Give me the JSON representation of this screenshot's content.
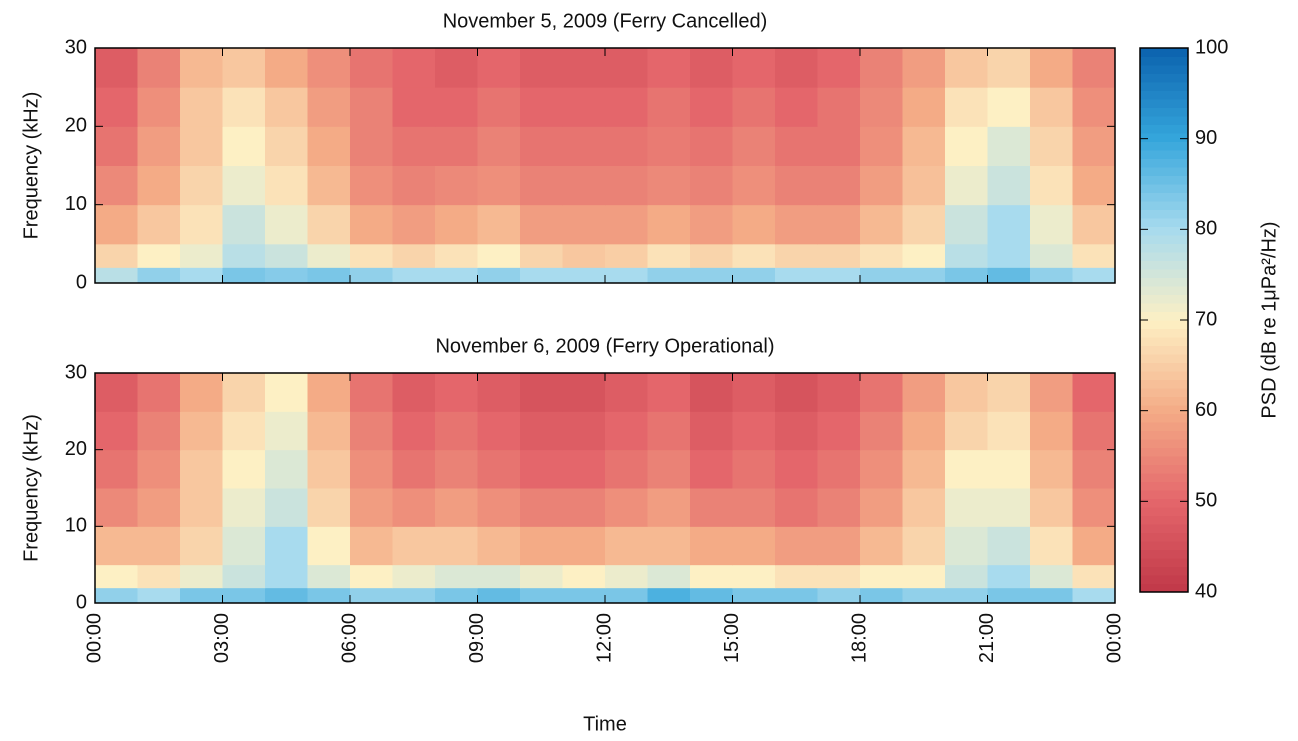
{
  "chart_data": [
    {
      "type": "heatmap",
      "title": "November 5, 2009 (Ferry Cancelled)",
      "ylabel": "Frequency (kHz)",
      "xbins": [
        0,
        1,
        2,
        3,
        4,
        5,
        6,
        7,
        8,
        9,
        10,
        11,
        12,
        13,
        14,
        15,
        16,
        17,
        18,
        19,
        20,
        21,
        22,
        23,
        24
      ],
      "ybins": [
        0,
        2,
        5,
        10,
        15,
        20,
        25,
        30
      ],
      "values": [
        [
          78,
          82,
          80,
          84,
          83,
          84,
          82,
          80,
          80,
          82,
          80,
          80,
          80,
          82,
          82,
          82,
          80,
          80,
          82,
          82,
          84,
          86,
          82,
          80
        ],
        [
          66,
          70,
          72,
          78,
          76,
          72,
          68,
          66,
          68,
          70,
          66,
          64,
          65,
          68,
          66,
          68,
          66,
          66,
          68,
          70,
          78,
          80,
          74,
          68
        ],
        [
          60,
          64,
          68,
          76,
          72,
          66,
          60,
          58,
          60,
          62,
          58,
          58,
          58,
          60,
          58,
          60,
          58,
          58,
          62,
          66,
          76,
          80,
          72,
          64
        ],
        [
          55,
          60,
          66,
          72,
          68,
          62,
          56,
          54,
          55,
          56,
          54,
          54,
          54,
          55,
          54,
          56,
          54,
          54,
          58,
          63,
          72,
          76,
          68,
          60
        ],
        [
          52,
          58,
          64,
          70,
          66,
          60,
          54,
          52,
          52,
          54,
          52,
          52,
          52,
          53,
          52,
          54,
          52,
          52,
          56,
          62,
          70,
          74,
          66,
          58
        ],
        [
          50,
          56,
          64,
          68,
          64,
          58,
          54,
          50,
          50,
          52,
          50,
          50,
          50,
          52,
          50,
          52,
          50,
          52,
          55,
          60,
          68,
          70,
          64,
          56
        ],
        [
          48,
          54,
          62,
          64,
          60,
          56,
          52,
          50,
          48,
          50,
          48,
          48,
          48,
          50,
          48,
          50,
          48,
          50,
          54,
          58,
          64,
          66,
          60,
          54
        ]
      ],
      "xlim": [
        0,
        24
      ],
      "ylim": [
        0,
        30
      ],
      "yticks": [
        0,
        10,
        20,
        30
      ]
    },
    {
      "type": "heatmap",
      "title": "November 6, 2009 (Ferry Operational)",
      "ylabel": "Frequency (kHz)",
      "xlabel": "Time",
      "xbins": [
        0,
        1,
        2,
        3,
        4,
        5,
        6,
        7,
        8,
        9,
        10,
        11,
        12,
        13,
        14,
        15,
        16,
        17,
        18,
        19,
        20,
        21,
        22,
        23,
        24
      ],
      "ybins": [
        0,
        2,
        5,
        10,
        15,
        20,
        25,
        30
      ],
      "values": [
        [
          82,
          80,
          84,
          84,
          86,
          84,
          82,
          82,
          84,
          86,
          84,
          84,
          84,
          88,
          86,
          84,
          84,
          82,
          84,
          82,
          82,
          84,
          84,
          80
        ],
        [
          70,
          68,
          72,
          76,
          80,
          74,
          70,
          72,
          74,
          74,
          72,
          70,
          72,
          74,
          70,
          70,
          68,
          68,
          70,
          70,
          76,
          80,
          74,
          68
        ],
        [
          62,
          62,
          66,
          74,
          80,
          70,
          62,
          64,
          64,
          62,
          60,
          60,
          62,
          62,
          60,
          60,
          58,
          58,
          62,
          66,
          74,
          76,
          68,
          60
        ],
        [
          55,
          58,
          64,
          72,
          76,
          66,
          58,
          56,
          58,
          56,
          54,
          54,
          56,
          58,
          54,
          54,
          52,
          54,
          58,
          64,
          72,
          72,
          64,
          56
        ],
        [
          52,
          56,
          64,
          70,
          74,
          64,
          56,
          52,
          54,
          52,
          50,
          50,
          52,
          54,
          50,
          52,
          50,
          52,
          56,
          62,
          70,
          70,
          62,
          54
        ],
        [
          50,
          54,
          62,
          68,
          72,
          62,
          54,
          50,
          52,
          50,
          48,
          48,
          50,
          52,
          48,
          50,
          48,
          50,
          54,
          60,
          66,
          68,
          60,
          52
        ],
        [
          48,
          52,
          60,
          66,
          70,
          60,
          52,
          48,
          50,
          48,
          46,
          46,
          48,
          50,
          46,
          48,
          46,
          48,
          52,
          58,
          64,
          66,
          58,
          50
        ]
      ],
      "xlim": [
        0,
        24
      ],
      "ylim": [
        0,
        30
      ],
      "yticks": [
        0,
        10,
        20,
        30
      ],
      "xticks": [
        {
          "value": 0,
          "label": "00:00"
        },
        {
          "value": 3,
          "label": "03:00"
        },
        {
          "value": 6,
          "label": "06:00"
        },
        {
          "value": 9,
          "label": "09:00"
        },
        {
          "value": 12,
          "label": "12:00"
        },
        {
          "value": 15,
          "label": "15:00"
        },
        {
          "value": 18,
          "label": "18:00"
        },
        {
          "value": 21,
          "label": "21:00"
        },
        {
          "value": 24,
          "label": "00:00"
        }
      ]
    },
    {
      "type": "colorbar",
      "label": "PSD (dB re 1μPa²/Hz)",
      "clim": [
        40,
        100
      ],
      "ticks": [
        40,
        50,
        60,
        70,
        80,
        90,
        100
      ],
      "colormap": [
        "#c03848",
        "#e4666b",
        "#f4ab86",
        "#fdf0c4",
        "#a8dbee",
        "#35a6dc",
        "#0b62ae"
      ]
    }
  ]
}
